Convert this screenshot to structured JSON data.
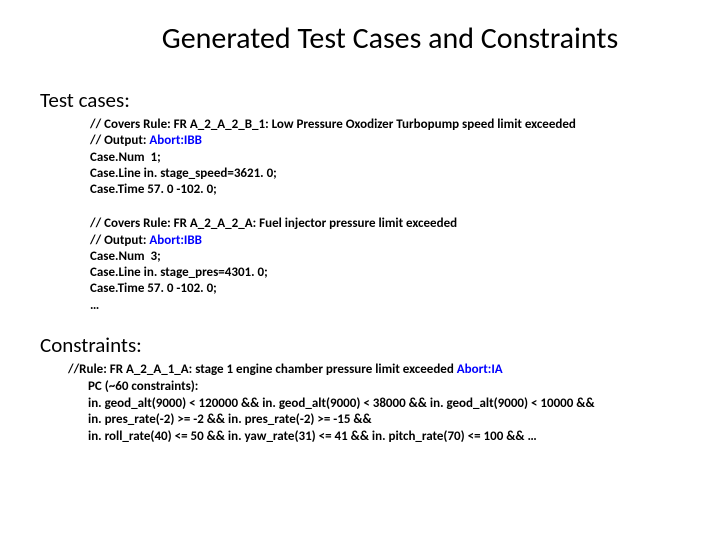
{
  "title": "Generated Test Cases and Constraints",
  "section1": "Test cases:",
  "tc1": {
    "l1a": "// Covers Rule: FR A_2_A_2_B_1: Low Pressure Oxodizer Turbopump speed limit exceeded",
    "l1b": "// Output: ",
    "l1b_hl": "Abort:IBB",
    "l2": "Case.Num  1;",
    "l3": "Case.Line in. stage_speed=3621. 0;",
    "l4": "Case.Time 57. 0 -102. 0;"
  },
  "tc2": {
    "l1a": "// Covers Rule: FR A_2_A_2_A: Fuel injector pressure limit exceeded",
    "l1b": "// Output: ",
    "l1b_hl": "Abort:IBB",
    "l2": "Case.Num  3;",
    "l3": "Case.Line in. stage_pres=4301. 0;",
    "l4": "Case.Time 57. 0 -102. 0;",
    "l5": "…"
  },
  "section2": "Constraints:",
  "cons": {
    "l1a": "//Rule: FR A_2_A_1_A: stage 1 engine chamber pressure limit exceeded ",
    "l1b": "Abort:IA",
    "l2": "PC (~60 constraints):",
    "l3": "in. geod_alt(9000) < 120000 && in. geod_alt(9000) < 38000 && in. geod_alt(9000) < 10000 &&",
    "l4": "in. pres_rate(-2) >= -2 && in. pres_rate(-2) >= -15 &&",
    "l5": "in. roll_rate(40) <= 50 && in. yaw_rate(31) <= 41 && in. pitch_rate(70) <= 100 && …"
  }
}
